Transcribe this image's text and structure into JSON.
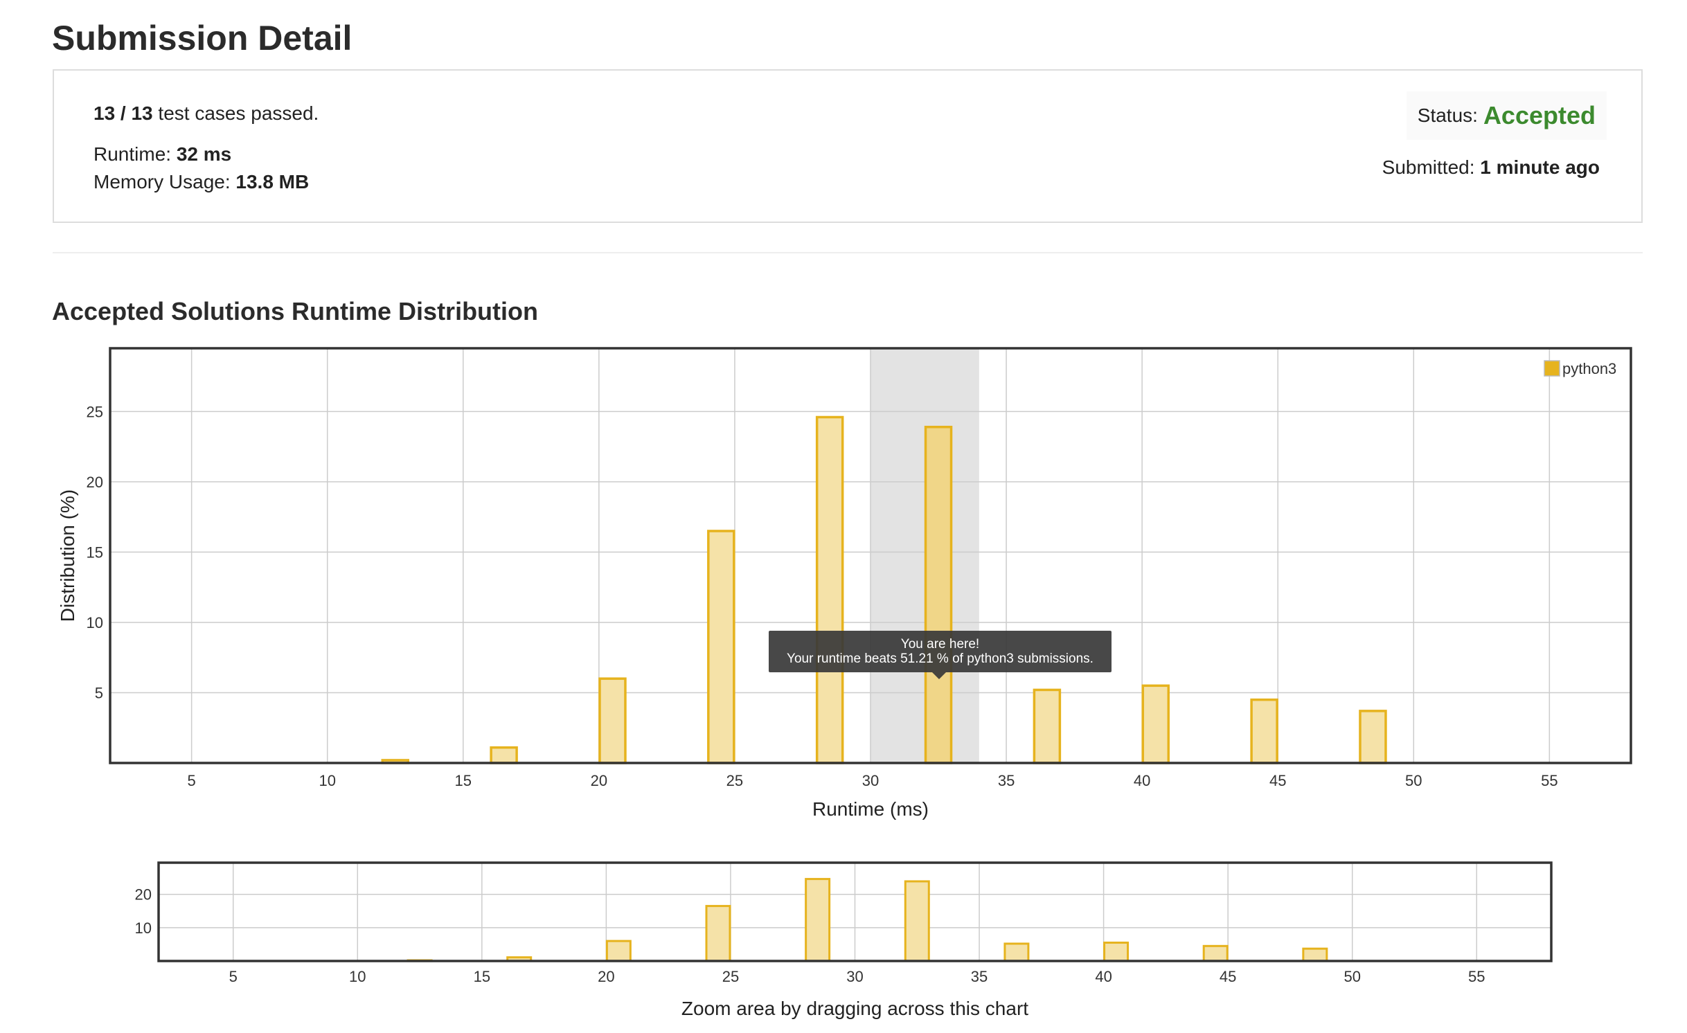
{
  "header": {
    "title": "Submission Detail"
  },
  "result": {
    "passed": "13 / 13",
    "tests_suffix": " test cases passed.",
    "runtime_label": "Runtime: ",
    "runtime_value": "32 ms",
    "memory_label": "Memory Usage: ",
    "memory_value": "13.8 MB",
    "status_label": "Status: ",
    "status_value": "Accepted",
    "submitted_label": "Submitted: ",
    "submitted_value": "1 minute ago",
    "status_color": "#3c8a2e"
  },
  "section": {
    "title": "Accepted Solutions Runtime Distribution"
  },
  "chart_data": [
    {
      "type": "bar",
      "xlabel": "Runtime (ms)",
      "ylabel": "Distribution (%)",
      "xlim": [
        2,
        58
      ],
      "ylim": [
        0,
        29.5
      ],
      "x_ticks": [
        5,
        10,
        15,
        20,
        25,
        30,
        35,
        40,
        45,
        50,
        55
      ],
      "y_ticks": [
        5,
        10,
        15,
        20,
        25
      ],
      "grid": true,
      "legend": "top-right",
      "series": [
        {
          "name": "python3",
          "color": "#e6b31e",
          "x": [
            12.5,
            16.5,
            20.5,
            24.5,
            28.5,
            32.5,
            36.5,
            40.5,
            44.5,
            48.5
          ],
          "values": [
            0.2,
            1.1,
            6.0,
            16.5,
            24.6,
            23.9,
            5.2,
            5.5,
            4.5,
            3.7
          ]
        }
      ],
      "highlight": {
        "x_range": [
          30,
          34
        ],
        "bar_x": 32.5
      },
      "tooltip": {
        "line1": "You are here!",
        "line2": "Your runtime beats 51.21 % of python3 submissions."
      }
    },
    {
      "type": "bar",
      "xlabel": "Zoom area by dragging across this chart",
      "xlim": [
        2,
        58
      ],
      "ylim": [
        0,
        29.5
      ],
      "x_ticks": [
        5,
        10,
        15,
        20,
        25,
        30,
        35,
        40,
        45,
        50,
        55
      ],
      "y_ticks": [
        10,
        20
      ],
      "grid": true,
      "series": [
        {
          "color": "#e6b31e",
          "x": [
            12.5,
            16.5,
            20.5,
            24.5,
            28.5,
            32.5,
            36.5,
            40.5,
            44.5,
            48.5
          ],
          "values": [
            0.2,
            1.1,
            6.0,
            16.5,
            24.6,
            23.9,
            5.2,
            5.5,
            4.5,
            3.7
          ]
        }
      ]
    }
  ]
}
